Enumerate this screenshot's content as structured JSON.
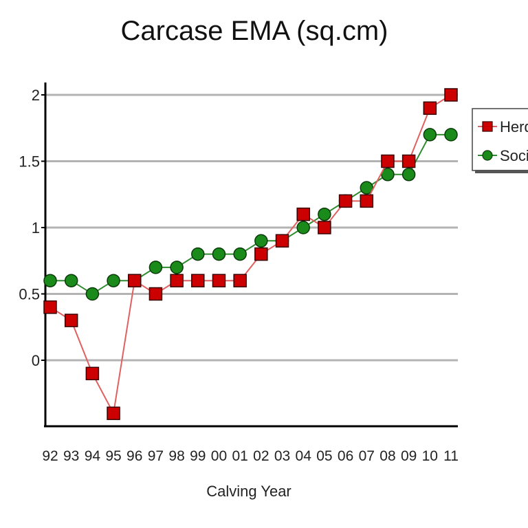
{
  "chart_data": {
    "type": "line",
    "title": "Carcase EMA (sq.cm)",
    "xlabel": "Calving Year",
    "ylabel": "",
    "categories": [
      "92",
      "93",
      "94",
      "95",
      "96",
      "97",
      "98",
      "99",
      "00",
      "01",
      "02",
      "03",
      "04",
      "05",
      "06",
      "07",
      "08",
      "09",
      "10",
      "11"
    ],
    "y_ticks": [
      "2",
      "1.5",
      "1",
      "0.5",
      "0"
    ],
    "ylim": [
      -0.5,
      2.1
    ],
    "grid": true,
    "legend_position": "right",
    "series": [
      {
        "name": "Herd",
        "marker": "square",
        "color": "#cc0000",
        "line_color": "#e06060",
        "values": [
          0.4,
          0.3,
          -0.1,
          -0.4,
          0.6,
          0.5,
          0.6,
          0.6,
          0.6,
          0.6,
          0.8,
          0.9,
          1.1,
          1.0,
          1.2,
          1.2,
          1.5,
          1.5,
          1.9,
          2.0
        ]
      },
      {
        "name": "Society",
        "marker": "circle",
        "color": "#1a8a1a",
        "line_color": "#2e8b2e",
        "values": [
          0.6,
          0.6,
          0.5,
          0.6,
          0.6,
          0.7,
          0.7,
          0.8,
          0.8,
          0.8,
          0.9,
          0.9,
          1.0,
          1.1,
          1.2,
          1.3,
          1.4,
          1.4,
          1.7,
          1.7
        ]
      }
    ]
  }
}
